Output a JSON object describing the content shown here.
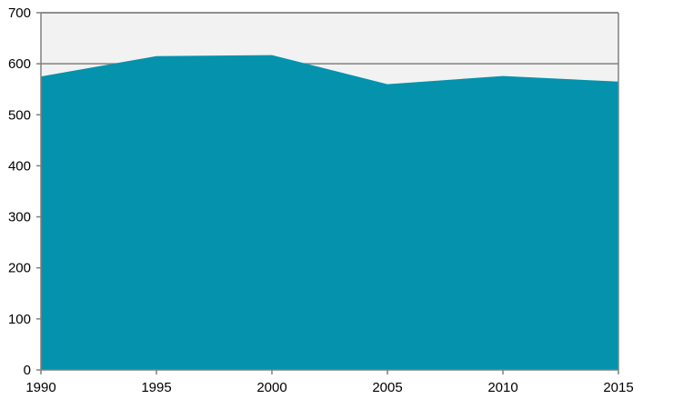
{
  "chart_data": {
    "type": "area",
    "title": "",
    "xlabel": "",
    "ylabel": "",
    "x": [
      1990,
      1995,
      2000,
      2005,
      2010,
      2015
    ],
    "series": [
      {
        "values": [
          575,
          615,
          617,
          560,
          576,
          565
        ]
      }
    ],
    "x_ticks": [
      "1990",
      "1995",
      "2000",
      "2005",
      "2010",
      "2015"
    ],
    "y_ticks": [
      "0",
      "100",
      "200",
      "300",
      "400",
      "500",
      "600",
      "700"
    ],
    "xlim": [
      1990,
      2015
    ],
    "ylim": [
      0,
      700
    ],
    "gridlines": "horizontal",
    "legend": "none",
    "colors": {
      "area_fill": "#0592ac",
      "plot_background": "#f2f2f2",
      "gridline": "#808080",
      "axis": "#808080"
    }
  }
}
